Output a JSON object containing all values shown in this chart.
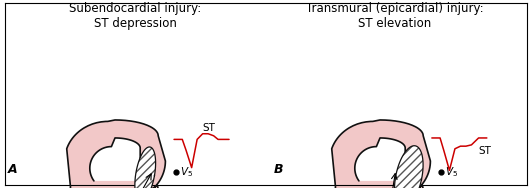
{
  "title_left": "Subendocardial injury:\nST depression",
  "title_right": "Transmural (epicardial) injury:\nST elevation",
  "label_A": "A",
  "label_B": "B",
  "heart_fill": "#f2c8c8",
  "heart_stroke": "#111111",
  "hatch_color": "#555555",
  "bg_color": "#ffffff",
  "ecg_color": "#cc0000",
  "font_size_title": 8.5,
  "font_size_label": 9,
  "font_size_anno": 7.5
}
